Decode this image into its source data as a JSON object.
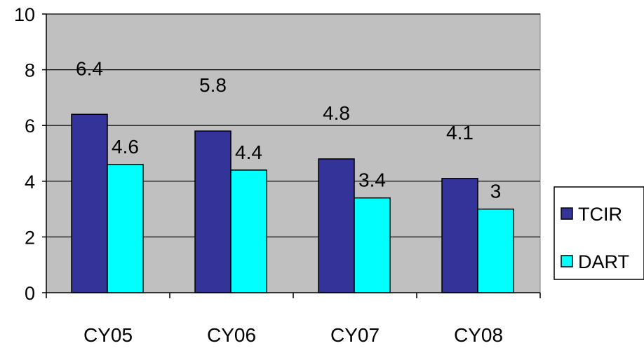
{
  "chart_data": {
    "type": "bar",
    "categories": [
      "CY05",
      "CY06",
      "CY07",
      "CY08"
    ],
    "series": [
      {
        "name": "TCIR",
        "values": [
          6.4,
          5.8,
          4.8,
          4.1
        ],
        "labels": [
          "6.4",
          "5.8",
          "4.8",
          "4.1"
        ],
        "color": "#333399"
      },
      {
        "name": "DART",
        "values": [
          4.6,
          4.4,
          3.4,
          3.0
        ],
        "labels": [
          "4.6",
          "4.4",
          "3.4",
          "3"
        ],
        "color": "#00FFFF"
      }
    ],
    "y_ticks": [
      "0",
      "2",
      "4",
      "6",
      "8",
      "10"
    ],
    "ylim": [
      0,
      10
    ],
    "grid": true,
    "plot_background": "#C0C0C0",
    "legend_position": "right"
  }
}
